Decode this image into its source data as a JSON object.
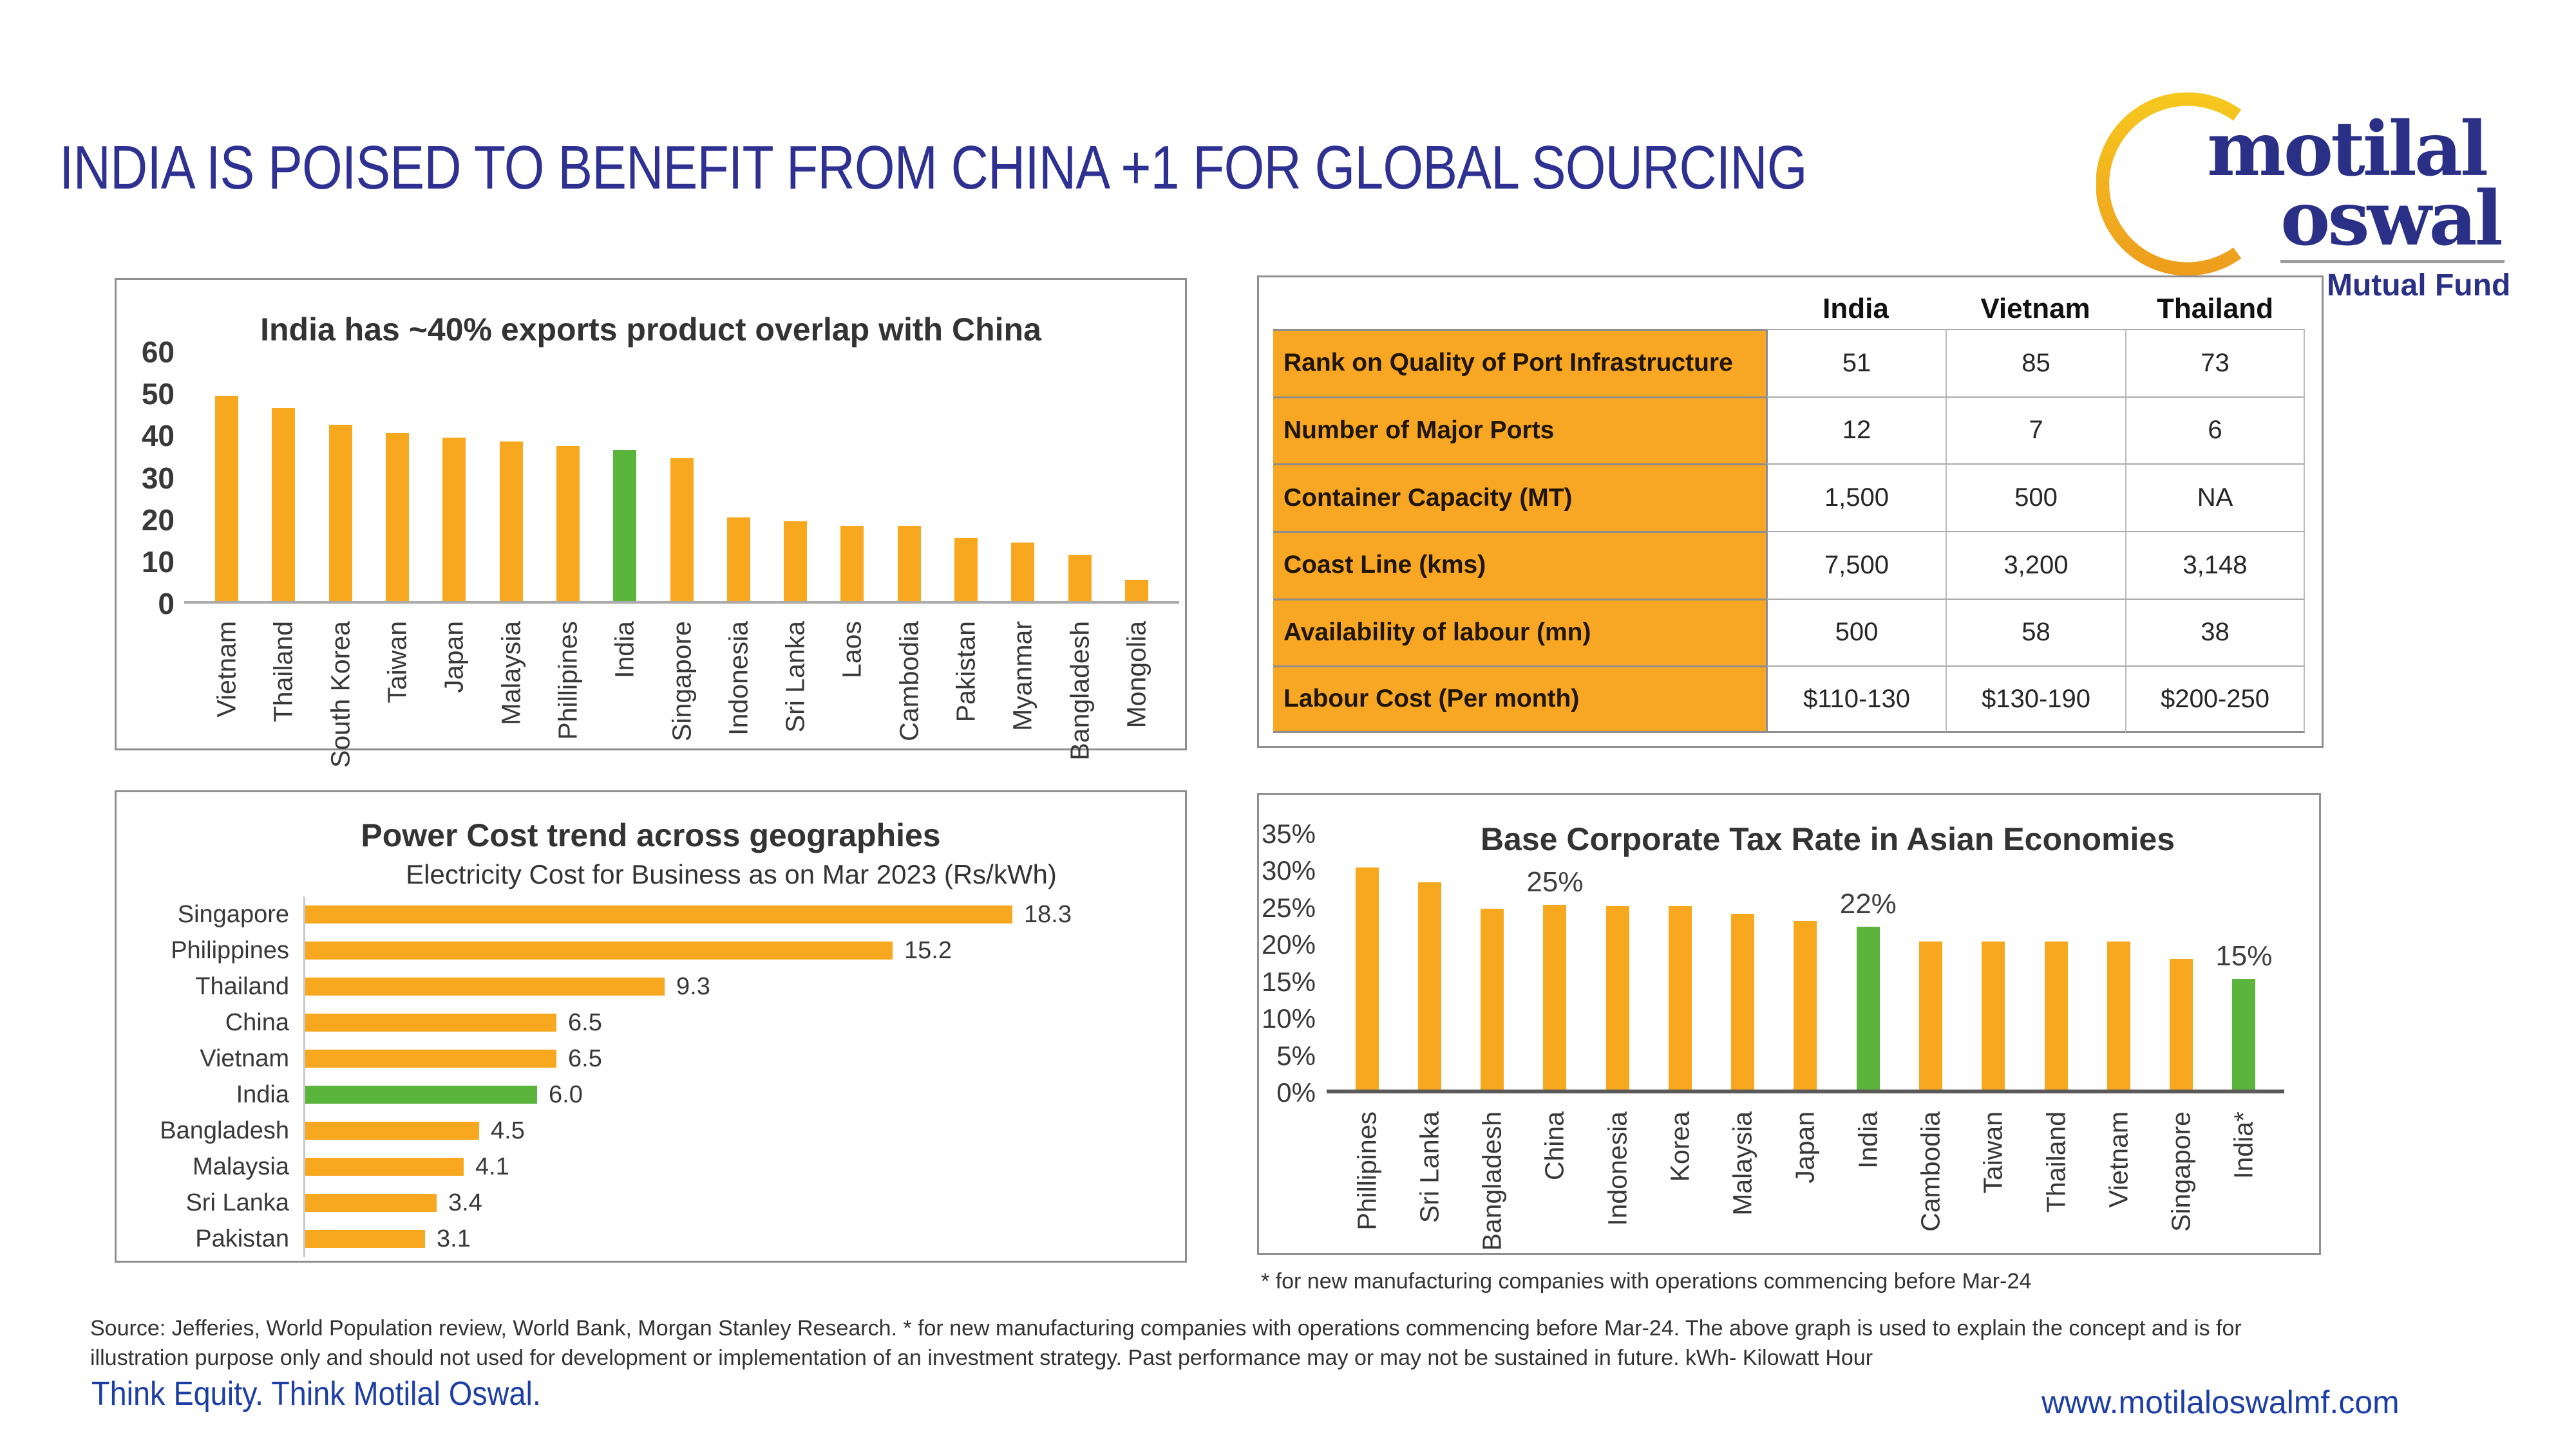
{
  "slide": {
    "title": "INDIA IS POISED TO BENEFIT FROM CHINA +1 FOR GLOBAL SOURCING",
    "source": "Source: Jefferies, World Population review, World Bank, Morgan Stanley Research. * for new manufacturing companies with operations commencing before Mar-24. The above graph is used to explain the concept and is for illustration purpose only and should not used for development or implementation of an investment strategy. Past performance may or may not be sustained in future. kWh- Kilowatt Hour",
    "footer_left": "Think Equity. Think Motilal Oswal.",
    "footer_right": "www.motilaloswalmf.com"
  },
  "logo": {
    "word1": "motilal",
    "word2": "oswal",
    "tagline": "Mutual Fund"
  },
  "colors": {
    "orange": "#F8A81E",
    "green": "#5BB53C",
    "table_orange": "#F7A723",
    "navy": "#2E3192",
    "blue": "#1D3EA4"
  },
  "table": {
    "columns": [
      "India",
      "Vietnam",
      "Thailand"
    ],
    "rows": [
      {
        "label": "Rank on Quality of Port Infrastructure",
        "values": [
          "51",
          "85",
          "73"
        ]
      },
      {
        "label": "Number of Major Ports",
        "values": [
          "12",
          "7",
          "6"
        ]
      },
      {
        "label": "Container Capacity (MT)",
        "values": [
          "1,500",
          "500",
          "NA"
        ]
      },
      {
        "label": "Coast Line (kms)",
        "values": [
          "7,500",
          "3,200",
          "3,148"
        ]
      },
      {
        "label": "Availability of labour (mn)",
        "values": [
          "500",
          "58",
          "38"
        ]
      },
      {
        "label": "Labour Cost (Per month)",
        "values": [
          "$110-130",
          "$130-190",
          "$200-250"
        ]
      }
    ]
  },
  "chart_data": [
    {
      "id": "exports_overlap",
      "type": "bar",
      "title": "India has ~40% exports product overlap with China",
      "categories": [
        "Vietnam",
        "Thailand",
        "South Korea",
        "Taiwan",
        "Japan",
        "Malaysia",
        "Phillipines",
        "India",
        "Singapore",
        "Indonesia",
        "Sri Lanka",
        "Laos",
        "Cambodia",
        "Pakistan",
        "Myanmar",
        "Bangladesh",
        "Mongolia"
      ],
      "values": [
        49,
        46,
        42,
        40,
        39,
        38,
        37,
        36,
        34,
        20,
        19,
        18,
        18,
        15,
        14,
        11,
        5
      ],
      "highlight_categories": [
        "India"
      ],
      "ylim": [
        0,
        60
      ],
      "yticks": [
        0,
        10,
        20,
        30,
        40,
        50,
        60
      ],
      "grid": false,
      "legend": "none"
    },
    {
      "id": "power_cost",
      "type": "bar",
      "orientation": "horizontal",
      "title": "Power Cost trend across geographies",
      "subtitle": "Electricity Cost for Business as on Mar 2023 (Rs/kWh)",
      "categories": [
        "Singapore",
        "Philippines",
        "Thailand",
        "China",
        "Vietnam",
        "India",
        "Bangladesh",
        "Malaysia",
        "Sri Lanka",
        "Pakistan"
      ],
      "values": [
        18.3,
        15.2,
        9.3,
        6.5,
        6.5,
        6.0,
        4.5,
        4.1,
        3.4,
        3.1
      ],
      "value_labels": [
        "18.3",
        "15.2",
        "9.3",
        "6.5",
        "6.5",
        "6.0",
        "4.5",
        "4.1",
        "3.4",
        "3.1"
      ],
      "highlight_categories": [
        "India"
      ],
      "xlim": [
        0,
        20
      ],
      "grid": false,
      "legend": "none"
    },
    {
      "id": "corporate_tax",
      "type": "bar",
      "title": "Base Corporate Tax Rate in Asian Economies",
      "categories": [
        "Phillipines",
        "Sri Lanka",
        "Bangladesh",
        "China",
        "Indonesia",
        "Korea",
        "Malaysia",
        "Japan",
        "India",
        "Cambodia",
        "Taiwan",
        "Thailand",
        "Vietnam",
        "Singapore",
        "India*"
      ],
      "values": [
        30,
        28,
        24.5,
        25,
        24.8,
        24.8,
        23.8,
        22.8,
        22,
        20,
        20,
        20,
        20,
        17.7,
        15
      ],
      "data_labels": {
        "China": "25%",
        "India": "22%",
        "India*": "15%"
      },
      "highlight_categories": [
        "India",
        "India*"
      ],
      "ylim": [
        0,
        35
      ],
      "yticks": [
        "0%",
        "5%",
        "10%",
        "15%",
        "20%",
        "25%",
        "30%",
        "35%"
      ],
      "footnote": "* for new manufacturing companies with operations commencing before Mar-24",
      "grid": false,
      "legend": "none"
    }
  ]
}
